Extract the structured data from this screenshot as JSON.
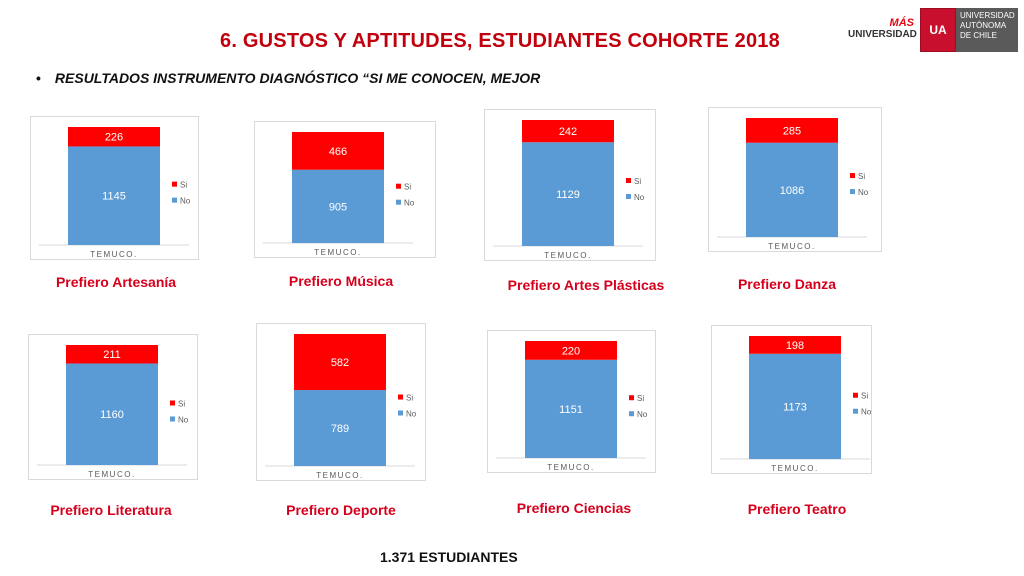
{
  "header": {
    "title": "6. GUSTOS Y APTITUDES, ESTUDIANTES COHORTE 2018",
    "subtitle": "RESULTADOS INSTRUMENTO DIAGNÓSTICO “SI ME CONOCEN, MEJOR",
    "bullet": "•"
  },
  "logo": {
    "mas": "MÁS",
    "universidad": "UNIVERSIDAD",
    "shield": "UA",
    "name_lines": [
      "UNIVERSIDAD",
      "AUTÓNOMA",
      "DE CHILE"
    ]
  },
  "colors": {
    "si": "#ff0000",
    "no": "#5b9bd5",
    "title": "#c0000c"
  },
  "chart_data": [
    {
      "type": "bar",
      "stacked": true,
      "title": "",
      "categories": [
        "TEMUCO."
      ],
      "series": [
        {
          "name": "No",
          "values": [
            1145
          ]
        },
        {
          "name": "Si",
          "values": [
            226
          ]
        }
      ],
      "caption": "Prefiero Artesanía",
      "legend": "right"
    },
    {
      "type": "bar",
      "stacked": true,
      "title": "",
      "categories": [
        "TEMUCO."
      ],
      "series": [
        {
          "name": "No",
          "values": [
            905
          ]
        },
        {
          "name": "Si",
          "values": [
            466
          ]
        }
      ],
      "caption": "Prefiero Música",
      "legend": "right"
    },
    {
      "type": "bar",
      "stacked": true,
      "title": "",
      "categories": [
        "TEMUCO."
      ],
      "series": [
        {
          "name": "No",
          "values": [
            1129
          ]
        },
        {
          "name": "Si",
          "values": [
            242
          ]
        }
      ],
      "caption": "Prefiero Artes Plásticas",
      "legend": "right"
    },
    {
      "type": "bar",
      "stacked": true,
      "title": "",
      "categories": [
        "TEMUCO."
      ],
      "series": [
        {
          "name": "No",
          "values": [
            1086
          ]
        },
        {
          "name": "Si",
          "values": [
            285
          ]
        }
      ],
      "caption": "Prefiero Danza",
      "legend": "right"
    },
    {
      "type": "bar",
      "stacked": true,
      "title": "",
      "categories": [
        "TEMUCO."
      ],
      "series": [
        {
          "name": "No",
          "values": [
            1160
          ]
        },
        {
          "name": "Si",
          "values": [
            211
          ]
        }
      ],
      "caption": "Prefiero Literatura",
      "legend": "right"
    },
    {
      "type": "bar",
      "stacked": true,
      "title": "",
      "categories": [
        "TEMUCO."
      ],
      "series": [
        {
          "name": "No",
          "values": [
            789
          ]
        },
        {
          "name": "Si",
          "values": [
            582
          ]
        }
      ],
      "caption": "Prefiero Deporte",
      "legend": "right"
    },
    {
      "type": "bar",
      "stacked": true,
      "title": "",
      "categories": [
        "TEMUCO."
      ],
      "series": [
        {
          "name": "No",
          "values": [
            1151
          ]
        },
        {
          "name": "Si",
          "values": [
            220
          ]
        }
      ],
      "caption": "Prefiero Ciencias",
      "legend": "right"
    },
    {
      "type": "bar",
      "stacked": true,
      "title": "",
      "categories": [
        "TEMUCO."
      ],
      "series": [
        {
          "name": "No",
          "values": [
            1173
          ]
        },
        {
          "name": "Si",
          "values": [
            198
          ]
        }
      ],
      "caption": "Prefiero Teatro",
      "legend": "right"
    }
  ],
  "footer": "1.371 ESTUDIANTES"
}
